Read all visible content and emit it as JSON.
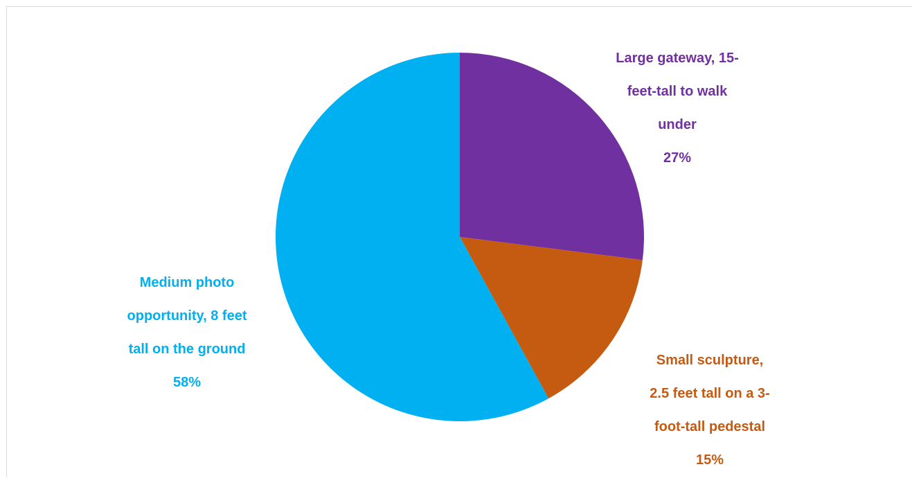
{
  "chart_data": {
    "type": "pie",
    "title": "",
    "legend": "none",
    "slices": [
      {
        "label_lines": [
          "Large gateway, 15-",
          "feet-tall to walk",
          "under"
        ],
        "percent_label": "27%",
        "value": 27,
        "color": "#7030a0"
      },
      {
        "label_lines": [
          "Small sculpture,",
          "2.5 feet tall on a 3-",
          "foot-tall pedestal"
        ],
        "percent_label": "15%",
        "value": 15,
        "color": "#c55a11"
      },
      {
        "label_lines": [
          "Medium photo",
          "opportunity, 8 feet",
          "tall on the ground"
        ],
        "percent_label": "58%",
        "value": 58,
        "color": "#00b0f0"
      }
    ]
  }
}
